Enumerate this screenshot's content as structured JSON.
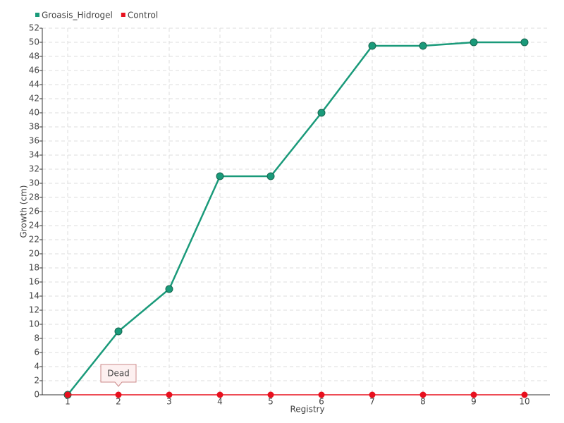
{
  "chart_data": {
    "type": "line",
    "xlabel": "Registry",
    "ylabel": "Growth (cm)",
    "categories": [
      "1",
      "2",
      "3",
      "4",
      "5",
      "6",
      "7",
      "8",
      "9",
      "10"
    ],
    "series": [
      {
        "name": "Groasis_Hidrogel",
        "color": "#1a9a7a",
        "values": [
          0,
          9,
          15,
          31,
          31,
          40,
          49.5,
          49.5,
          50,
          50
        ]
      },
      {
        "name": "Control",
        "color": "#e8101e",
        "values": [
          0,
          0,
          0,
          0,
          0,
          0,
          0,
          0,
          0,
          0
        ]
      }
    ],
    "annotations": [
      "Dead"
    ],
    "ylim": [
      0,
      52
    ],
    "yticks": [
      0,
      2,
      4,
      6,
      8,
      10,
      12,
      14,
      16,
      18,
      20,
      22,
      24,
      26,
      28,
      30,
      32,
      34,
      36,
      38,
      40,
      42,
      44,
      46,
      48,
      50,
      52
    ],
    "grid": true,
    "legend": "top-left"
  }
}
